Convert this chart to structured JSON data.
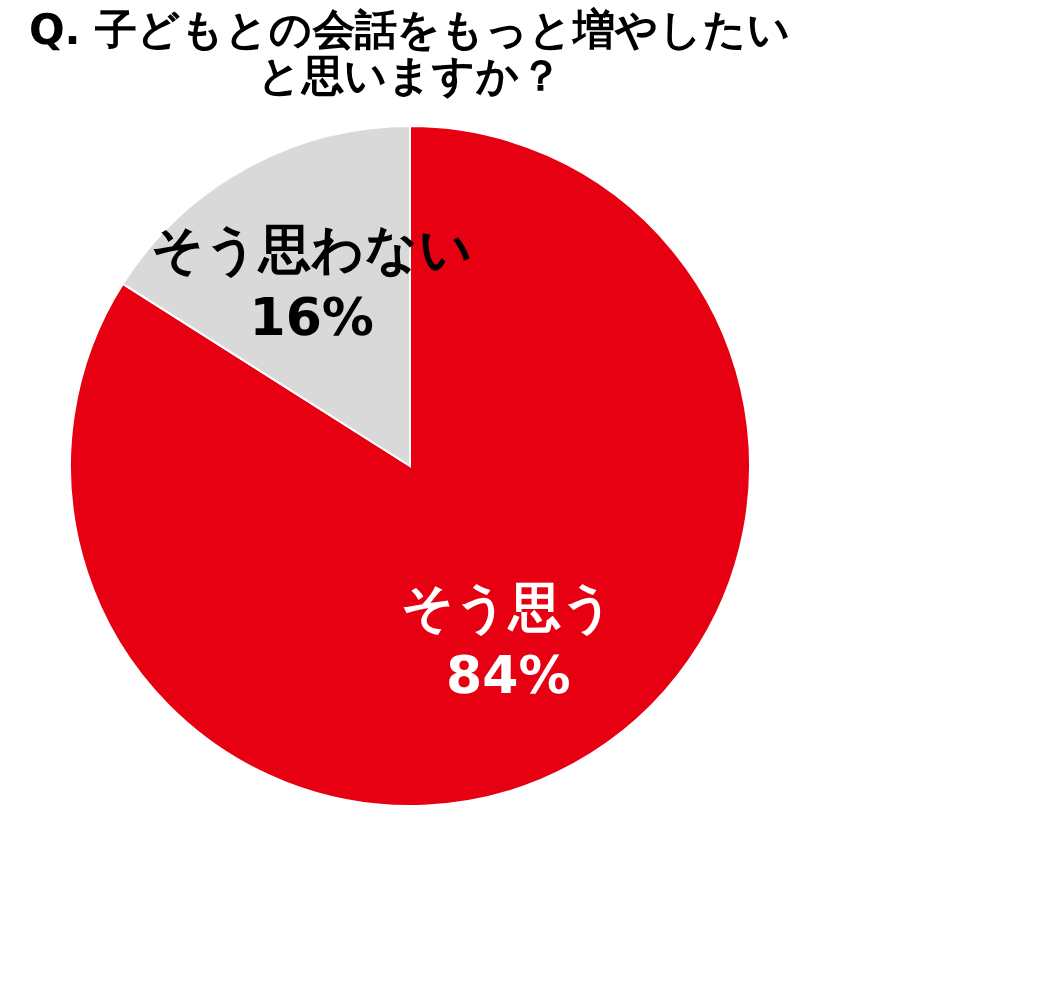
{
  "chart_data": {
    "type": "pie",
    "title": "Q. 子どもとの会話をもっと増やしたいと思いますか？",
    "categories": [
      "そう思う",
      "そう思わない"
    ],
    "values": [
      84,
      16
    ],
    "value_labels": [
      "84%",
      "16%"
    ],
    "colors": [
      "#e60012",
      "#d9d9d9"
    ],
    "legend": false
  }
}
